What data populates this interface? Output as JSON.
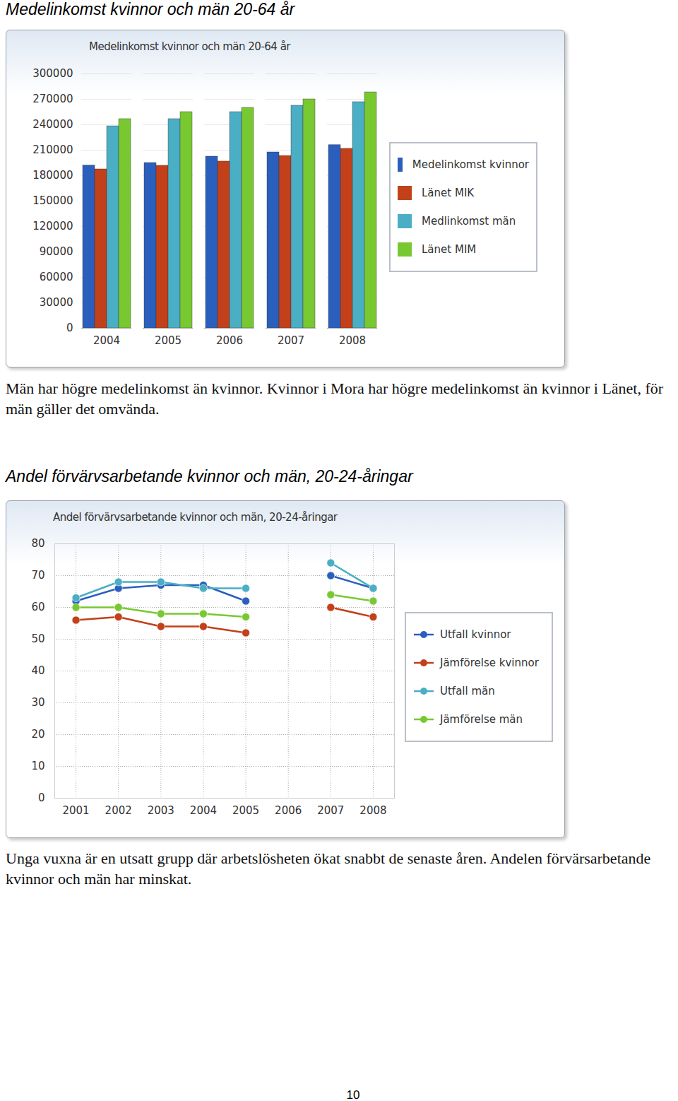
{
  "chart_data": [
    {
      "type": "bar",
      "title": "Medelinkomst kvinnor och män 20-64 år",
      "categories": [
        "2004",
        "2005",
        "2006",
        "2007",
        "2008"
      ],
      "series": [
        {
          "name": "Medelinkomst kvinnor",
          "color": "#2b5fbd",
          "values": [
            192000,
            195000,
            202500,
            207500,
            216000
          ]
        },
        {
          "name": "Länet MIK",
          "color": "#c2401a",
          "values": [
            187500,
            191700,
            196700,
            203300,
            211700
          ]
        },
        {
          "name": "Medlinkomst män",
          "color": "#4aaec4",
          "values": [
            238300,
            246700,
            255000,
            262500,
            266700
          ]
        },
        {
          "name": "Länet MIM",
          "color": "#78c832",
          "values": [
            246700,
            255000,
            260000,
            270000,
            278300
          ]
        }
      ],
      "ylim": [
        0,
        300000
      ],
      "yticks": [
        0,
        30000,
        60000,
        90000,
        120000,
        150000,
        180000,
        210000,
        240000,
        270000,
        300000
      ],
      "grid": true,
      "legend": "right"
    },
    {
      "type": "line",
      "title": "Andel förvärvsarbetande kvinnor och män, 20-24-åringar",
      "x": [
        2001,
        2002,
        2003,
        2004,
        2005,
        2006,
        2007,
        2008
      ],
      "series": [
        {
          "name": "Utfall kvinnor",
          "color": "#2b5fbd",
          "values": [
            62,
            66,
            67,
            67,
            62,
            null,
            70,
            66
          ]
        },
        {
          "name": "Jämförelse kvinnor",
          "color": "#c2401a",
          "values": [
            56,
            57,
            54,
            54,
            52,
            null,
            60,
            57
          ]
        },
        {
          "name": "Utfall män",
          "color": "#4aaec4",
          "values": [
            63,
            68,
            68,
            66,
            66,
            null,
            74,
            66
          ]
        },
        {
          "name": "Jämförelse män",
          "color": "#78c832",
          "values": [
            60,
            60,
            58,
            58,
            57,
            null,
            64,
            62
          ]
        }
      ],
      "xlim": [
        2000.5,
        2008.5
      ],
      "xticks": [
        2001,
        2002,
        2003,
        2004,
        2005,
        2006,
        2007,
        2008
      ],
      "ylim": [
        0,
        80
      ],
      "yticks": [
        0,
        10,
        20,
        30,
        40,
        50,
        60,
        70,
        80
      ],
      "grid": true,
      "legend": "right",
      "marker": "circle"
    }
  ],
  "page": {
    "sections": [
      {
        "heading": "Medelinkomst kvinnor och män 20-64 år",
        "caption": "Män har högre medelinkomst än kvinnor. Kvinnor i Mora har högre medelinkomst än kvinnor i Länet, för män gäller det omvända."
      },
      {
        "heading": "Andel förvärvsarbetande kvinnor och män, 20-24-åringar",
        "caption": "Unga vuxna är en utsatt grupp där arbetslösheten ökat snabbt de senaste åren. Andelen förvärsarbetande kvinnor och män har minskat."
      }
    ],
    "page_number": 10
  }
}
